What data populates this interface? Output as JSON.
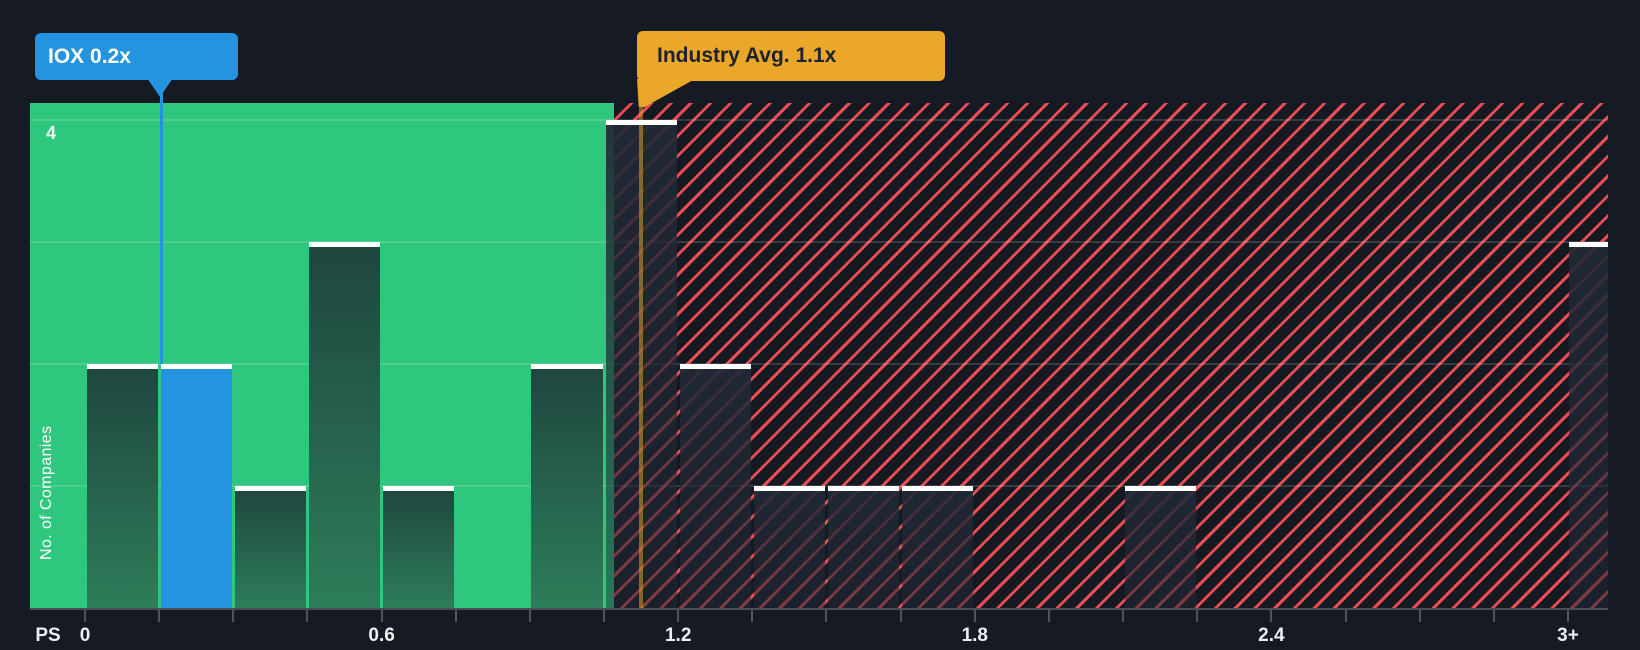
{
  "colors": {
    "background": "#151A23",
    "zone_green": "#2FC77D",
    "hatch_bg": "#141922",
    "hatch_red": "#EB4B52",
    "bar_green_top": "#1F453E",
    "bar_green_bottom": "#2D7D5A",
    "bar_navy": "#212936",
    "bar_blue": "#2594E0",
    "marker_orange": "#EBA72A",
    "tooltip_text_dark": "#1B2230",
    "cap_white": "#FFFFFF",
    "axis_line": "#4A5058",
    "tick_mark": "#50565E",
    "axis_text": "#EDEFF2"
  },
  "chart_data": {
    "type": "bar",
    "subtype": "histogram",
    "xlabel": "PS",
    "ylabel": "No. of Companies",
    "x_tick_labels": [
      "0",
      "0.6",
      "1.2",
      "1.8",
      "2.4",
      "3+"
    ],
    "x_tick_values": [
      0,
      0.6,
      1.2,
      1.8,
      2.4,
      3.0
    ],
    "minor_tick_interval": 0.15,
    "bin_width": 0.15,
    "ylim": [
      0,
      4
    ],
    "xlim_drawn": [
      0,
      3.08
    ],
    "y_gridlines": [
      1,
      2,
      3,
      4
    ],
    "y_axis_visible_label": {
      "value": 4,
      "label": "4"
    },
    "grid": "horizontal",
    "legend_position": "none",
    "bins": [
      {
        "x0": 0.0,
        "x1": 0.15,
        "count": 2
      },
      {
        "x0": 0.15,
        "x1": 0.3,
        "count": 2,
        "highlight": "company"
      },
      {
        "x0": 0.3,
        "x1": 0.45,
        "count": 1
      },
      {
        "x0": 0.45,
        "x1": 0.6,
        "count": 3
      },
      {
        "x0": 0.6,
        "x1": 0.75,
        "count": 1
      },
      {
        "x0": 0.9,
        "x1": 1.05,
        "count": 2
      },
      {
        "x0": 1.05,
        "x1": 1.2,
        "count": 4
      },
      {
        "x0": 1.2,
        "x1": 1.35,
        "count": 2
      },
      {
        "x0": 1.35,
        "x1": 1.5,
        "count": 1
      },
      {
        "x0": 1.5,
        "x1": 1.65,
        "count": 1
      },
      {
        "x0": 1.65,
        "x1": 1.8,
        "count": 1
      },
      {
        "x0": 2.1,
        "x1": 2.25,
        "count": 1
      },
      {
        "x0": 3.0,
        "x1": 3.15,
        "count": 3,
        "clipped_at_right_edge": true
      }
    ],
    "markers": [
      {
        "id": "company",
        "label": "IOX 0.2x",
        "value": 0.2,
        "color": "#2594E0"
      },
      {
        "id": "industry",
        "label": "Industry Avg. 1.1x",
        "value": 1.1,
        "color": "#EBA72A"
      }
    ],
    "zones": [
      {
        "id": "below-industry-avg",
        "from": 0.0,
        "to": 1.07,
        "fill": "#2FC77D"
      },
      {
        "id": "above-industry-avg",
        "from": 1.07,
        "to": 3.08,
        "fill": "red-diagonal-hatch"
      }
    ]
  }
}
